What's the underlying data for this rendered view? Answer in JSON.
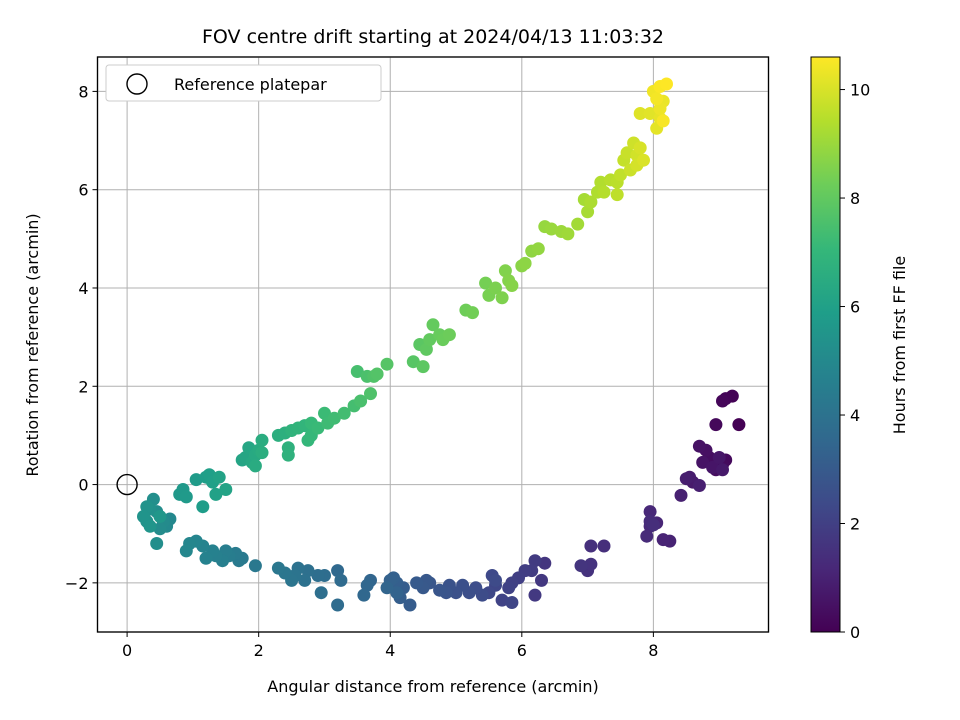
{
  "chart_data": {
    "type": "scatter",
    "title": "FOV centre drift starting at 2024/04/13 11:03:32",
    "xlabel": "Angular distance from reference (arcmin)",
    "ylabel": "Rotation from reference (arcmin)",
    "xlim": [
      -0.45,
      9.75
    ],
    "ylim": [
      -3.0,
      8.7
    ],
    "xticks": [
      0,
      2,
      4,
      6,
      8
    ],
    "yticks": [
      -2,
      0,
      2,
      4,
      6,
      8
    ],
    "grid": true,
    "legend": {
      "placement": "top-left",
      "entries": [
        {
          "label": "Reference platepar",
          "marker": "open-circle"
        }
      ]
    },
    "reference_point": {
      "x": 0,
      "y": 0
    },
    "colorbar": {
      "label": "Hours from first FF file",
      "colormap": "viridis",
      "range": [
        0,
        10.6
      ],
      "ticks": [
        0,
        2,
        4,
        6,
        8,
        10
      ]
    },
    "series": [
      {
        "points": [
          [
            9.3,
            1.22
          ],
          [
            9.2,
            1.8
          ],
          [
            9.1,
            1.75
          ],
          [
            9.05,
            1.7
          ],
          [
            8.95,
            1.22
          ],
          [
            9.1,
            0.5
          ],
          [
            9.05,
            0.4
          ],
          [
            8.95,
            0.3
          ],
          [
            8.85,
            0.55
          ],
          [
            8.8,
            0.7
          ],
          [
            8.7,
            0.78
          ],
          [
            8.75,
            0.45
          ],
          [
            8.9,
            0.35
          ],
          [
            9.0,
            0.55
          ],
          [
            9.05,
            0.3
          ],
          [
            8.6,
            0.05
          ],
          [
            8.55,
            0.15
          ],
          [
            8.5,
            0.12
          ],
          [
            8.7,
            -0.02
          ],
          [
            8.42,
            -0.22
          ],
          [
            8.25,
            -1.15
          ],
          [
            8.15,
            -1.12
          ],
          [
            8.05,
            -0.78
          ],
          [
            7.95,
            -0.55
          ],
          [
            7.95,
            -0.85
          ],
          [
            7.9,
            -1.05
          ],
          [
            7.95,
            -0.75
          ],
          [
            8.0,
            -0.82
          ],
          [
            7.25,
            -1.25
          ],
          [
            7.05,
            -1.25
          ],
          [
            7.0,
            -1.75
          ],
          [
            7.05,
            -1.62
          ],
          [
            6.9,
            -1.65
          ],
          [
            6.35,
            -1.6
          ],
          [
            6.3,
            -1.95
          ],
          [
            6.2,
            -2.25
          ],
          [
            6.2,
            -1.55
          ],
          [
            6.15,
            -1.75
          ],
          [
            6.05,
            -1.75
          ],
          [
            5.95,
            -1.9
          ],
          [
            5.85,
            -2.0
          ],
          [
            5.8,
            -2.1
          ],
          [
            5.7,
            -2.35
          ],
          [
            5.85,
            -2.4
          ],
          [
            5.6,
            -2.05
          ],
          [
            5.5,
            -2.2
          ],
          [
            5.55,
            -1.85
          ],
          [
            5.6,
            -1.95
          ],
          [
            5.4,
            -2.25
          ],
          [
            5.3,
            -2.1
          ],
          [
            5.2,
            -2.2
          ],
          [
            5.1,
            -2.05
          ],
          [
            5.0,
            -2.2
          ],
          [
            4.9,
            -2.05
          ],
          [
            4.85,
            -2.2
          ],
          [
            4.75,
            -2.15
          ],
          [
            4.6,
            -2.0
          ],
          [
            4.55,
            -1.95
          ],
          [
            4.5,
            -2.1
          ],
          [
            4.4,
            -2.0
          ],
          [
            4.3,
            -2.45
          ],
          [
            4.2,
            -2.1
          ],
          [
            4.15,
            -2.3
          ],
          [
            4.1,
            -2.0
          ],
          [
            4.05,
            -1.9
          ],
          [
            4.0,
            -1.95
          ],
          [
            4.1,
            -2.2
          ],
          [
            3.95,
            -2.1
          ],
          [
            3.7,
            -1.95
          ],
          [
            3.65,
            -2.05
          ],
          [
            3.6,
            -2.25
          ],
          [
            3.2,
            -1.75
          ],
          [
            3.25,
            -1.95
          ],
          [
            3.2,
            -2.45
          ],
          [
            3.0,
            -1.85
          ],
          [
            2.9,
            -1.85
          ],
          [
            2.95,
            -2.2
          ],
          [
            2.75,
            -1.75
          ],
          [
            2.7,
            -1.95
          ],
          [
            2.6,
            -1.7
          ],
          [
            2.55,
            -1.85
          ],
          [
            2.5,
            -1.95
          ],
          [
            2.4,
            -1.8
          ],
          [
            2.3,
            -1.7
          ],
          [
            1.95,
            -1.65
          ],
          [
            1.75,
            -1.5
          ],
          [
            1.7,
            -1.55
          ],
          [
            1.65,
            -1.4
          ],
          [
            1.55,
            -1.45
          ],
          [
            1.5,
            -1.35
          ],
          [
            1.45,
            -1.55
          ],
          [
            1.35,
            -1.45
          ],
          [
            1.3,
            -1.35
          ],
          [
            1.2,
            -1.5
          ],
          [
            1.15,
            -1.25
          ],
          [
            1.05,
            -1.15
          ],
          [
            0.95,
            -1.2
          ],
          [
            0.9,
            -1.35
          ],
          [
            0.65,
            -0.7
          ],
          [
            0.6,
            -0.85
          ],
          [
            0.55,
            -0.75
          ],
          [
            0.5,
            -0.9
          ],
          [
            0.45,
            -0.55
          ],
          [
            0.45,
            -1.2
          ],
          [
            0.4,
            -0.3
          ],
          [
            0.35,
            -0.5
          ],
          [
            0.3,
            -0.75
          ],
          [
            0.3,
            -0.45
          ],
          [
            0.25,
            -0.65
          ],
          [
            0.35,
            -0.85
          ],
          [
            0.5,
            -0.65
          ],
          [
            0.8,
            -0.2
          ],
          [
            0.85,
            -0.1
          ],
          [
            0.9,
            -0.25
          ],
          [
            1.05,
            0.1
          ],
          [
            1.15,
            -0.45
          ],
          [
            1.2,
            0.15
          ],
          [
            1.25,
            0.2
          ],
          [
            1.3,
            0.05
          ],
          [
            1.35,
            -0.2
          ],
          [
            1.4,
            0.15
          ],
          [
            1.5,
            -0.1
          ],
          [
            1.75,
            0.5
          ],
          [
            1.8,
            0.55
          ],
          [
            1.85,
            0.75
          ],
          [
            1.9,
            0.45
          ],
          [
            1.95,
            0.6
          ],
          [
            2.0,
            0.7
          ],
          [
            1.95,
            0.38
          ],
          [
            2.05,
            0.9
          ],
          [
            2.05,
            0.65
          ],
          [
            2.3,
            1.0
          ],
          [
            2.4,
            1.05
          ],
          [
            2.45,
            0.75
          ],
          [
            2.45,
            0.6
          ],
          [
            2.5,
            1.1
          ],
          [
            2.6,
            1.15
          ],
          [
            2.7,
            1.2
          ],
          [
            2.75,
            0.9
          ],
          [
            2.8,
            1.0
          ],
          [
            2.8,
            1.25
          ],
          [
            2.9,
            1.15
          ],
          [
            3.0,
            1.45
          ],
          [
            3.05,
            1.25
          ],
          [
            3.15,
            1.35
          ],
          [
            3.3,
            1.45
          ],
          [
            3.45,
            1.6
          ],
          [
            3.5,
            2.3
          ],
          [
            3.55,
            1.7
          ],
          [
            3.65,
            2.2
          ],
          [
            3.7,
            1.85
          ],
          [
            3.75,
            2.2
          ],
          [
            3.8,
            2.25
          ],
          [
            3.95,
            2.45
          ],
          [
            4.35,
            2.5
          ],
          [
            4.45,
            2.85
          ],
          [
            4.5,
            2.4
          ],
          [
            4.55,
            2.75
          ],
          [
            4.6,
            2.95
          ],
          [
            4.65,
            3.25
          ],
          [
            4.75,
            3.05
          ],
          [
            4.8,
            2.95
          ],
          [
            4.9,
            3.05
          ],
          [
            5.15,
            3.55
          ],
          [
            5.25,
            3.5
          ],
          [
            5.45,
            4.1
          ],
          [
            5.5,
            3.85
          ],
          [
            5.6,
            4.0
          ],
          [
            5.7,
            3.8
          ],
          [
            5.75,
            4.35
          ],
          [
            5.8,
            4.15
          ],
          [
            5.85,
            4.05
          ],
          [
            6.0,
            4.45
          ],
          [
            6.05,
            4.5
          ],
          [
            6.15,
            4.75
          ],
          [
            6.25,
            4.8
          ],
          [
            6.35,
            5.25
          ],
          [
            6.45,
            5.2
          ],
          [
            6.6,
            5.15
          ],
          [
            6.7,
            5.1
          ],
          [
            6.85,
            5.3
          ],
          [
            6.95,
            5.8
          ],
          [
            7.0,
            5.55
          ],
          [
            7.05,
            5.75
          ],
          [
            7.15,
            5.95
          ],
          [
            7.2,
            6.15
          ],
          [
            7.25,
            5.95
          ],
          [
            7.35,
            6.2
          ],
          [
            7.45,
            6.15
          ],
          [
            7.45,
            5.9
          ],
          [
            7.5,
            6.3
          ],
          [
            7.55,
            6.6
          ],
          [
            7.6,
            6.75
          ],
          [
            7.65,
            6.4
          ],
          [
            7.7,
            6.95
          ],
          [
            7.75,
            6.7
          ],
          [
            7.75,
            6.5
          ],
          [
            7.8,
            6.85
          ],
          [
            7.85,
            6.6
          ],
          [
            7.8,
            7.55
          ],
          [
            7.95,
            7.55
          ],
          [
            8.05,
            7.25
          ],
          [
            8.1,
            7.45
          ],
          [
            8.15,
            7.8
          ],
          [
            8.1,
            7.65
          ],
          [
            8.0,
            8.0
          ],
          [
            8.05,
            7.85
          ],
          [
            8.15,
            7.4
          ],
          [
            8.1,
            8.1
          ],
          [
            8.2,
            8.15
          ]
        ]
      }
    ]
  }
}
